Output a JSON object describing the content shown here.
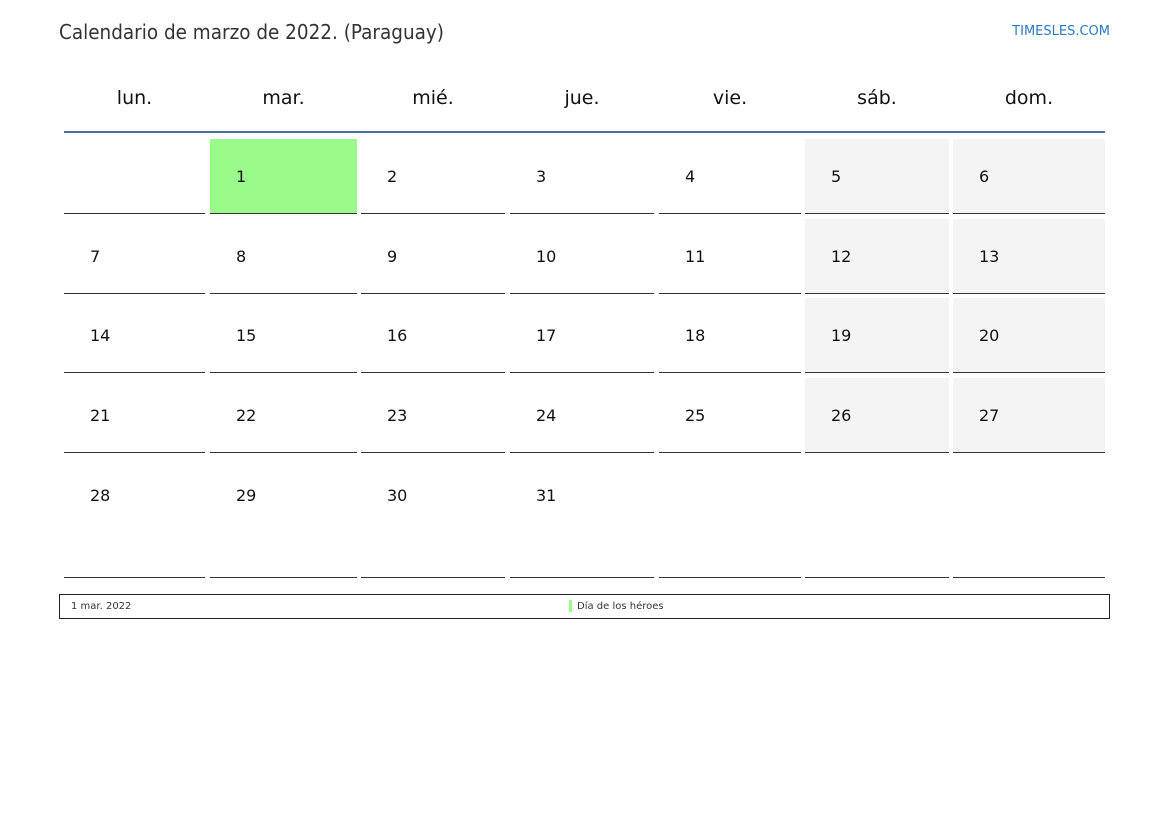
{
  "header": {
    "title": "Calendario de marzo de 2022. (Paraguay)",
    "brand": "TIMESLES.COM"
  },
  "weekdays": [
    "lun.",
    "mar.",
    "mié.",
    "jue.",
    "vie.",
    "sáb.",
    "dom."
  ],
  "weeks": [
    [
      "",
      "1",
      "2",
      "3",
      "4",
      "5",
      "6"
    ],
    [
      "7",
      "8",
      "9",
      "10",
      "11",
      "12",
      "13"
    ],
    [
      "14",
      "15",
      "16",
      "17",
      "18",
      "19",
      "20"
    ],
    [
      "21",
      "22",
      "23",
      "24",
      "25",
      "26",
      "27"
    ],
    [
      "28",
      "29",
      "30",
      "31",
      "",
      "",
      ""
    ]
  ],
  "holiday_days": [
    "1"
  ],
  "colors": {
    "holiday": "#9afa8a",
    "weekend": "#f4f4f4",
    "header_line": "#4a6c97",
    "brand": "#2a7ac0"
  },
  "legend": [
    {
      "date": "1 mar. 2022",
      "name": "Día de los héroes"
    }
  ]
}
